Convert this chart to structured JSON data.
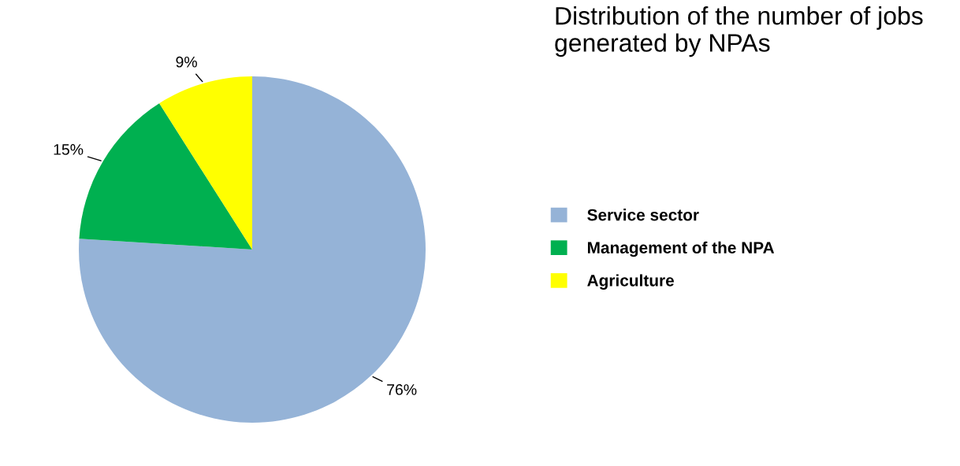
{
  "chart_data": {
    "type": "pie",
    "title": "Distribution of the number of jobs generated by NPAs",
    "categories": [
      "Service sector",
      "Management of the NPA",
      "Agriculture"
    ],
    "values": [
      76,
      15,
      9
    ],
    "colors": [
      "#95b3d7",
      "#00b050",
      "#ffff00"
    ],
    "value_labels": [
      "76%",
      "15%",
      "9%"
    ],
    "legend": "right"
  }
}
